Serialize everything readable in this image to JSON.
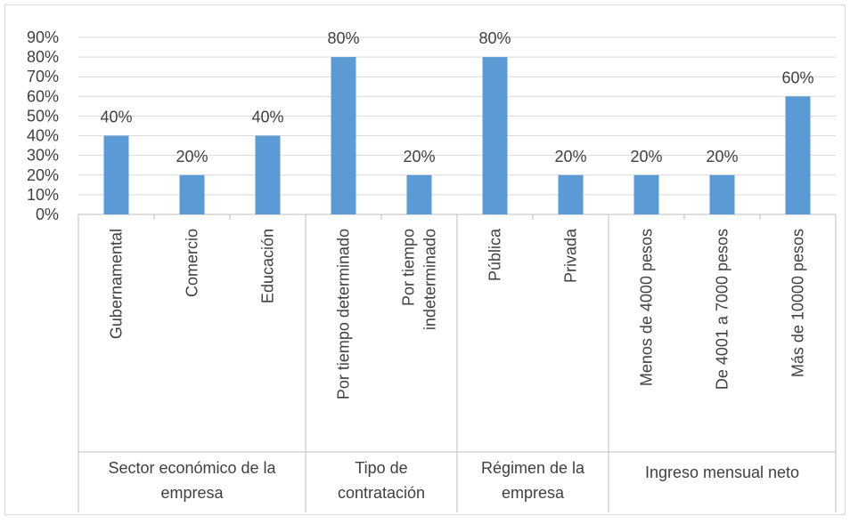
{
  "chart_data": {
    "type": "bar",
    "title": "",
    "xlabel": "",
    "ylabel": "",
    "ylim": [
      0,
      90
    ],
    "y_ticks": [
      "0%",
      "10%",
      "20%",
      "30%",
      "40%",
      "50%",
      "60%",
      "70%",
      "80%",
      "90%"
    ],
    "grid": true,
    "legend": "none",
    "bar_color": "#5b9bd5",
    "groups": [
      {
        "label": "Sector económico de la empresa",
        "label_lines": [
          "Sector económico de la",
          "empresa"
        ],
        "categories": [
          "Gubernamental",
          "Comercio",
          "Educación"
        ]
      },
      {
        "label": "Tipo de contratación",
        "label_lines": [
          "Tipo de",
          "contratación"
        ],
        "categories": [
          "Por tiempo determinado",
          "Por tiempo indeterminado"
        ]
      },
      {
        "label": "Régimen de la empresa",
        "label_lines": [
          "Régimen de la",
          "empresa"
        ],
        "categories": [
          "Pública",
          "Privada"
        ]
      },
      {
        "label": "Ingreso mensual neto",
        "label_lines": [
          "Ingreso mensual neto"
        ],
        "categories": [
          "Menos de 4000 pesos",
          "De 4001 a 7000 pesos",
          "Más de 10000 pesos"
        ]
      }
    ],
    "categories": [
      "Gubernamental",
      "Comercio",
      "Educación",
      "Por tiempo determinado",
      "Por tiempo indeterminado",
      "Pública",
      "Privada",
      "Menos de 4000 pesos",
      "De 4001 a 7000 pesos",
      "Más de 10000 pesos"
    ],
    "category_label_lines": [
      [
        "Gubernamental"
      ],
      [
        "Comercio"
      ],
      [
        "Educación"
      ],
      [
        "Por tiempo determinado"
      ],
      [
        "Por tiempo",
        "indeterminado"
      ],
      [
        "Pública"
      ],
      [
        "Privada"
      ],
      [
        "Menos de 4000 pesos"
      ],
      [
        "De 4001 a 7000 pesos"
      ],
      [
        "Más de 10000 pesos"
      ]
    ],
    "values": [
      40,
      20,
      40,
      80,
      20,
      80,
      20,
      20,
      20,
      60
    ],
    "data_labels": [
      "40%",
      "20%",
      "40%",
      "80%",
      "20%",
      "80%",
      "20%",
      "20%",
      "20%",
      "60%"
    ]
  }
}
